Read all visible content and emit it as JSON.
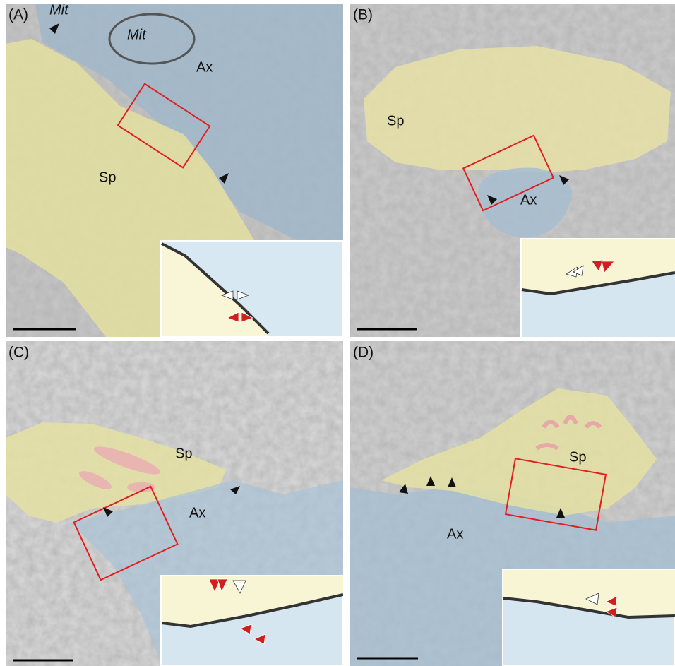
{
  "panels": [
    {
      "label": "(A)",
      "annotations": [
        "Mit",
        "Mit",
        "Ax",
        "Sp"
      ]
    },
    {
      "label": "(B)",
      "annotations": [
        "Sp",
        "Ax"
      ]
    },
    {
      "label": "(C)",
      "annotations": [
        "Sp",
        "Ax"
      ]
    },
    {
      "label": "(D)",
      "annotations": [
        "Sp",
        "Ax"
      ]
    }
  ]
}
